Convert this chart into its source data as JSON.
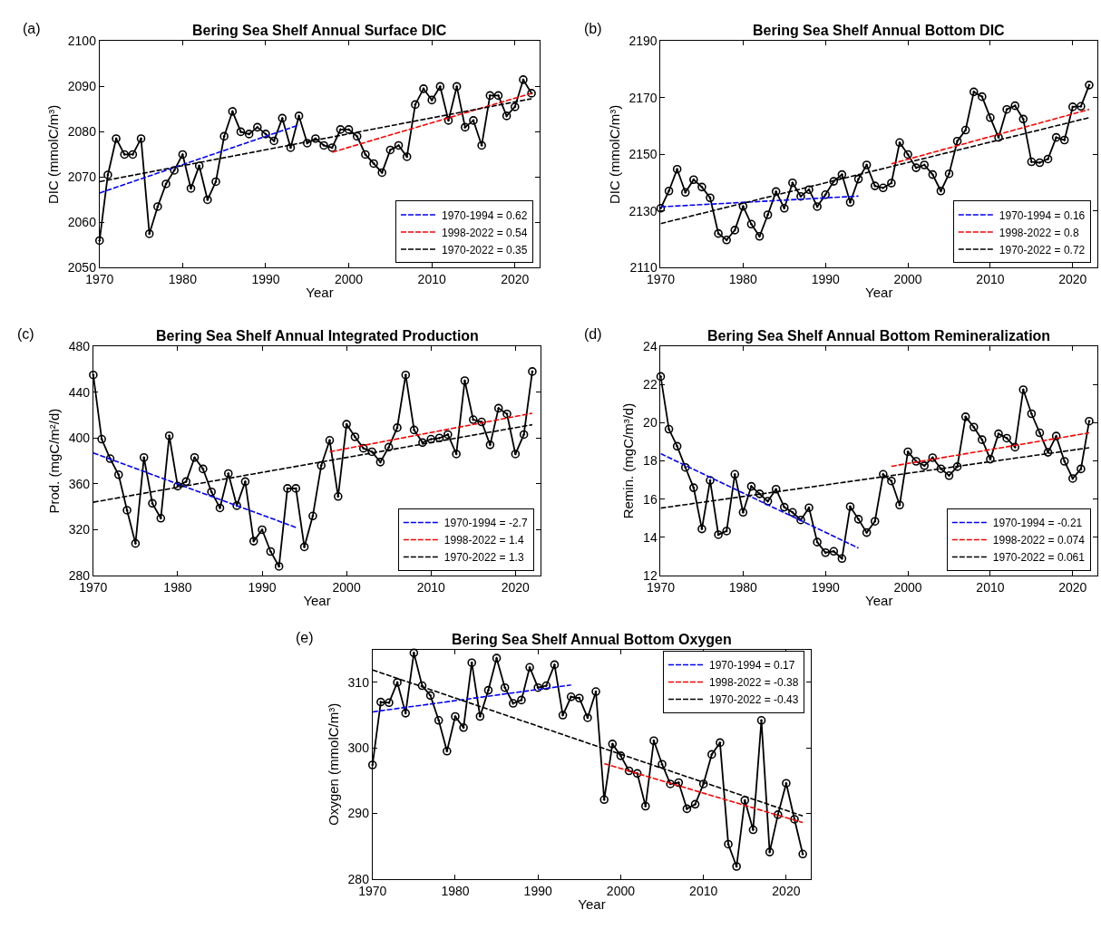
{
  "chart_data": [
    {
      "type": "line",
      "title": "Bering Sea Shelf Annual Surface DIC",
      "xlabel": "Year",
      "ylabel": "DIC (mmolC/m³)",
      "annotations": [
        "(a)"
      ],
      "legend": "bottom right",
      "xlim": [
        1970,
        2023
      ],
      "xticks": [
        1970,
        1980,
        1990,
        2000,
        2010,
        2020
      ],
      "ylim": [
        2050,
        2100
      ],
      "yticks": [
        2050,
        2060,
        2070,
        2080,
        2090,
        2100
      ],
      "x": [
        1970,
        1971,
        1972,
        1973,
        1974,
        1975,
        1976,
        1977,
        1978,
        1979,
        1980,
        1981,
        1982,
        1983,
        1984,
        1985,
        1986,
        1987,
        1988,
        1989,
        1990,
        1991,
        1992,
        1993,
        1994,
        1995,
        1996,
        1997,
        1998,
        1999,
        2000,
        2001,
        2002,
        2003,
        2004,
        2005,
        2006,
        2007,
        2008,
        2009,
        2010,
        2011,
        2012,
        2013,
        2014,
        2015,
        2016,
        2017,
        2018,
        2019,
        2020,
        2021,
        2022
      ],
      "series": [
        {
          "color": "#000000",
          "marker": "circle",
          "line_style": "solid",
          "values": [
            2056,
            2070.5,
            2078.5,
            2075,
            2075,
            2078.5,
            2057.5,
            2063.5,
            2068.5,
            2071.5,
            2075,
            2067.5,
            2072.5,
            2065,
            2069,
            2079,
            2084.5,
            2080,
            2079.5,
            2081,
            2079.5,
            2078,
            2083,
            2076.5,
            2083.5,
            2077.5,
            2078.5,
            2077,
            2076.5,
            2080.5,
            2080.5,
            2079,
            2075,
            2073,
            2071,
            2076,
            2077,
            2074.5,
            2086,
            2089.5,
            2087,
            2090,
            2082.5,
            2090,
            2081,
            2082.5,
            2077,
            2088,
            2088,
            2083.5,
            2085.5,
            2091.5,
            2088.5
          ]
        },
        {
          "name": "1970-1994 = 0.62",
          "color": "#0000ff",
          "marker": "none",
          "line_style": "dashed",
          "x": [
            1970,
            1994
          ],
          "values": [
            2066.5,
            2081.5
          ]
        },
        {
          "name": "1998-2022 = 0.54",
          "color": "#ff0000",
          "marker": "none",
          "line_style": "dashed",
          "x": [
            1998,
            2022
          ],
          "values": [
            2075.5,
            2088.5
          ]
        },
        {
          "name": "1970-2022 = 0.35",
          "color": "#000000",
          "marker": "none",
          "line_style": "dashed",
          "x": [
            1970,
            2022
          ],
          "values": [
            2069,
            2087.3
          ]
        }
      ]
    },
    {
      "type": "line",
      "title": "Bering Sea Shelf Annual Bottom DIC",
      "xlabel": "Year",
      "ylabel": "DIC (mmolC/m³)",
      "annotations": [
        "(b)"
      ],
      "legend": "bottom right",
      "xlim": [
        1970,
        2023
      ],
      "xticks": [
        1970,
        1980,
        1990,
        2000,
        2010,
        2020
      ],
      "ylim": [
        2110,
        2190
      ],
      "yticks": [
        2110,
        2130,
        2150,
        2170,
        2190
      ],
      "x": [
        1970,
        1971,
        1972,
        1973,
        1974,
        1975,
        1976,
        1977,
        1978,
        1979,
        1980,
        1981,
        1982,
        1983,
        1984,
        1985,
        1986,
        1987,
        1988,
        1989,
        1990,
        1991,
        1992,
        1993,
        1994,
        1995,
        1996,
        1997,
        1998,
        1999,
        2000,
        2001,
        2002,
        2003,
        2004,
        2005,
        2006,
        2007,
        2008,
        2009,
        2010,
        2011,
        2012,
        2013,
        2014,
        2015,
        2016,
        2017,
        2018,
        2019,
        2020,
        2021,
        2022
      ],
      "series": [
        {
          "color": "#000000",
          "marker": "circle",
          "line_style": "solid",
          "values": [
            2131,
            2137.1,
            2144.8,
            2136.6,
            2141.1,
            2138.5,
            2134.7,
            2122.1,
            2119.8,
            2123.3,
            2131.7,
            2125.4,
            2121.1,
            2128.7,
            2136.9,
            2131,
            2140,
            2135.2,
            2137.6,
            2131.6,
            2135.8,
            2140.5,
            2142.9,
            2133.1,
            2141.3,
            2146.3,
            2138.9,
            2138.2,
            2139.9,
            2154.2,
            2150,
            2145.3,
            2146.3,
            2142.9,
            2137.1,
            2143.2,
            2154.7,
            2158.6,
            2172.1,
            2170.4,
            2163,
            2156,
            2165.9,
            2167.2,
            2162.5,
            2147.4,
            2147.1,
            2148.4,
            2156,
            2155.1,
            2166.8,
            2167,
            2174.5
          ]
        },
        {
          "name": "1970-1994 = 0.16",
          "color": "#0000ff",
          "marker": "none",
          "line_style": "dashed",
          "x": [
            1970,
            1994
          ],
          "values": [
            2131.5,
            2135.3
          ]
        },
        {
          "name": "1998-2022 = 0.8",
          "color": "#ff0000",
          "marker": "none",
          "line_style": "dashed",
          "x": [
            1998,
            2022
          ],
          "values": [
            2146.7,
            2165.9
          ]
        },
        {
          "name": "1970-2022 = 0.72",
          "color": "#000000",
          "marker": "none",
          "line_style": "dashed",
          "x": [
            1970,
            2022
          ],
          "values": [
            2125.6,
            2163
          ]
        }
      ]
    },
    {
      "type": "line",
      "title": "Bering Sea Shelf Annual Integrated Production",
      "xlabel": "Year",
      "ylabel": "Prod. (mgC/m²/d)",
      "annotations": [
        "(c)"
      ],
      "legend": "bottom right",
      "xlim": [
        1970,
        2023
      ],
      "xticks": [
        1970,
        1980,
        1990,
        2000,
        2010,
        2020
      ],
      "ylim": [
        280,
        480
      ],
      "yticks": [
        280,
        320,
        360,
        400,
        440,
        480
      ],
      "x": [
        1970,
        1971,
        1972,
        1973,
        1974,
        1975,
        1976,
        1977,
        1978,
        1979,
        1980,
        1981,
        1982,
        1983,
        1984,
        1985,
        1986,
        1987,
        1988,
        1989,
        1990,
        1991,
        1992,
        1993,
        1994,
        1995,
        1996,
        1997,
        1998,
        1999,
        2000,
        2001,
        2002,
        2003,
        2004,
        2005,
        2006,
        2007,
        2008,
        2009,
        2010,
        2011,
        2012,
        2013,
        2014,
        2015,
        2016,
        2017,
        2018,
        2019,
        2020,
        2021,
        2022
      ],
      "series": [
        {
          "color": "#000000",
          "marker": "circle",
          "line_style": "solid",
          "values": [
            455,
            399,
            382,
            368,
            337,
            308,
            383,
            343,
            330,
            402,
            358,
            362,
            383,
            373,
            353,
            339,
            369,
            341,
            362,
            310,
            320,
            301,
            288,
            356,
            356,
            305,
            332,
            376,
            398,
            349,
            412,
            401,
            391,
            388,
            379,
            392,
            409,
            455,
            407,
            396,
            399,
            400,
            403,
            386,
            450,
            416,
            414,
            394,
            426,
            421,
            386,
            403,
            458
          ]
        },
        {
          "name": "1970-1994 = -2.7",
          "color": "#0000ff",
          "marker": "none",
          "line_style": "dashed",
          "x": [
            1970,
            1994
          ],
          "values": [
            387,
            322
          ]
        },
        {
          "name": "1998-2022 = 1.4",
          "color": "#ff0000",
          "marker": "none",
          "line_style": "dashed",
          "x": [
            1998,
            2022
          ],
          "values": [
            388,
            421.6
          ]
        },
        {
          "name": "1970-2022 = 1.3",
          "color": "#000000",
          "marker": "none",
          "line_style": "dashed",
          "x": [
            1970,
            2022
          ],
          "values": [
            344,
            411.6
          ]
        }
      ]
    },
    {
      "type": "line",
      "title": "Bering Sea Shelf Annual Bottom Remineralization",
      "xlabel": "Year",
      "ylabel": "Remin. (mgC/m³/d)",
      "annotations": [
        "(d)"
      ],
      "legend": "bottom right",
      "xlim": [
        1970,
        2023
      ],
      "xticks": [
        1970,
        1980,
        1990,
        2000,
        2010,
        2020
      ],
      "ylim": [
        12,
        24
      ],
      "yticks": [
        12,
        14,
        16,
        18,
        20,
        22,
        24
      ],
      "x": [
        1970,
        1971,
        1972,
        1973,
        1974,
        1975,
        1976,
        1977,
        1978,
        1979,
        1980,
        1981,
        1982,
        1983,
        1984,
        1985,
        1986,
        1987,
        1988,
        1989,
        1990,
        1991,
        1992,
        1993,
        1994,
        1995,
        1996,
        1997,
        1998,
        1999,
        2000,
        2001,
        2002,
        2003,
        2004,
        2005,
        2006,
        2007,
        2008,
        2009,
        2010,
        2011,
        2012,
        2013,
        2014,
        2015,
        2016,
        2017,
        2018,
        2019,
        2020,
        2021,
        2022
      ],
      "series": [
        {
          "color": "#000000",
          "marker": "circle",
          "line_style": "solid",
          "values": [
            22.42,
            19.66,
            18.77,
            17.66,
            16.6,
            14.44,
            16.98,
            14.14,
            14.33,
            17.3,
            15.31,
            16.67,
            16.28,
            15.89,
            16.52,
            15.58,
            15.31,
            14.91,
            15.55,
            13.75,
            13.2,
            13.27,
            12.89,
            15.61,
            14.95,
            14.25,
            14.84,
            17.3,
            16.95,
            15.69,
            18.48,
            17.98,
            17.75,
            18.17,
            17.59,
            17.23,
            17.7,
            20.31,
            19.77,
            19.11,
            18.09,
            19.42,
            19.19,
            18.72,
            21.73,
            20.47,
            19.47,
            18.45,
            19.3,
            17.98,
            17.08,
            17.58,
            20.08
          ]
        },
        {
          "name": "1970-1994 = -0.21",
          "color": "#0000ff",
          "marker": "none",
          "line_style": "dashed",
          "x": [
            1970,
            1994
          ],
          "values": [
            18.38,
            13.44
          ]
        },
        {
          "name": "1998-2022 = 0.074",
          "color": "#ff0000",
          "marker": "none",
          "line_style": "dashed",
          "x": [
            1998,
            2022
          ],
          "values": [
            17.72,
            19.47
          ]
        },
        {
          "name": "1970-2022 = 0.061",
          "color": "#000000",
          "marker": "none",
          "line_style": "dashed",
          "x": [
            1970,
            2022
          ],
          "values": [
            15.53,
            18.69
          ]
        }
      ]
    },
    {
      "type": "line",
      "title": "Bering Sea Shelf Annual Bottom Oxygen",
      "xlabel": "Year",
      "ylabel": "Oxygen (mmolC/m³)",
      "annotations": [
        "(e)"
      ],
      "legend": "top right",
      "xlim": [
        1970,
        2023
      ],
      "xticks": [
        1970,
        1980,
        1990,
        2000,
        2010,
        2020
      ],
      "ylim": [
        280,
        315
      ],
      "yticks": [
        280,
        290,
        300,
        310
      ],
      "x": [
        1970,
        1971,
        1972,
        1973,
        1974,
        1975,
        1976,
        1977,
        1978,
        1979,
        1980,
        1981,
        1982,
        1983,
        1984,
        1985,
        1986,
        1987,
        1988,
        1989,
        1990,
        1991,
        1992,
        1993,
        1994,
        1995,
        1996,
        1997,
        1998,
        1999,
        2000,
        2001,
        2002,
        2003,
        2004,
        2005,
        2006,
        2007,
        2008,
        2009,
        2010,
        2011,
        2012,
        2013,
        2014,
        2015,
        2016,
        2017,
        2018,
        2019,
        2020,
        2021,
        2022
      ],
      "series": [
        {
          "color": "#000000",
          "marker": "circle",
          "line_style": "solid",
          "values": [
            297.4,
            307,
            306.9,
            310,
            305.3,
            314.5,
            309.5,
            308,
            304.2,
            299.5,
            304.8,
            303.1,
            313,
            304.8,
            308.8,
            313.7,
            309.2,
            306.8,
            307.3,
            312.3,
            309.2,
            309.5,
            312.7,
            305,
            307.8,
            307.6,
            304.6,
            308.6,
            292.1,
            300.6,
            298.8,
            296.5,
            296.1,
            291.1,
            301.1,
            297.5,
            294.5,
            294.7,
            290.7,
            291.4,
            294.5,
            299,
            300.8,
            285.3,
            281.9,
            292,
            287.5,
            304.2,
            284.1,
            289.8,
            294.6,
            289.1,
            283.8
          ]
        },
        {
          "name": "1970-1994 = 0.17",
          "color": "#0000ff",
          "marker": "none",
          "line_style": "dashed",
          "x": [
            1970,
            1994
          ],
          "values": [
            305.5,
            309.6
          ]
        },
        {
          "name": "1998-2022 = -0.38",
          "color": "#ff0000",
          "marker": "none",
          "line_style": "dashed",
          "x": [
            1998,
            2022
          ],
          "values": [
            297.6,
            288.6
          ]
        },
        {
          "name": "1970-2022 = -0.43",
          "color": "#000000",
          "marker": "none",
          "line_style": "dashed",
          "x": [
            1970,
            2022
          ],
          "values": [
            311.9,
            289.6
          ]
        }
      ]
    }
  ]
}
